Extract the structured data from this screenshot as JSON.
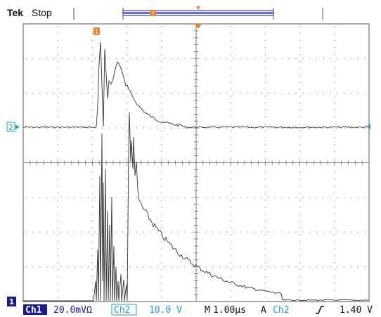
{
  "header": {
    "brand": "Tek",
    "acq_state": "Stop",
    "trigger_marker": "T"
  },
  "markers": {
    "trigger_position": "T",
    "ch1_ground": "1",
    "ch2_ground": "2",
    "ch1_trace_label": "1"
  },
  "footer": {
    "ch1_label": "Ch1",
    "ch1_scale": "20.0mVΩ",
    "ch2_label": "Ch2",
    "ch2_scale": "10.0 V",
    "timebase_prefix": "M",
    "timebase": "1.00µs",
    "trigger_mode": "A",
    "trigger_source": "Ch2",
    "trigger_level": "1.40 V"
  },
  "colors": {
    "ch1_accent": "#1a1aa0",
    "ch2_accent": "#22a0c8",
    "trigger_orange": "#f08020",
    "trace": "#333333",
    "grid": "#888888"
  }
}
